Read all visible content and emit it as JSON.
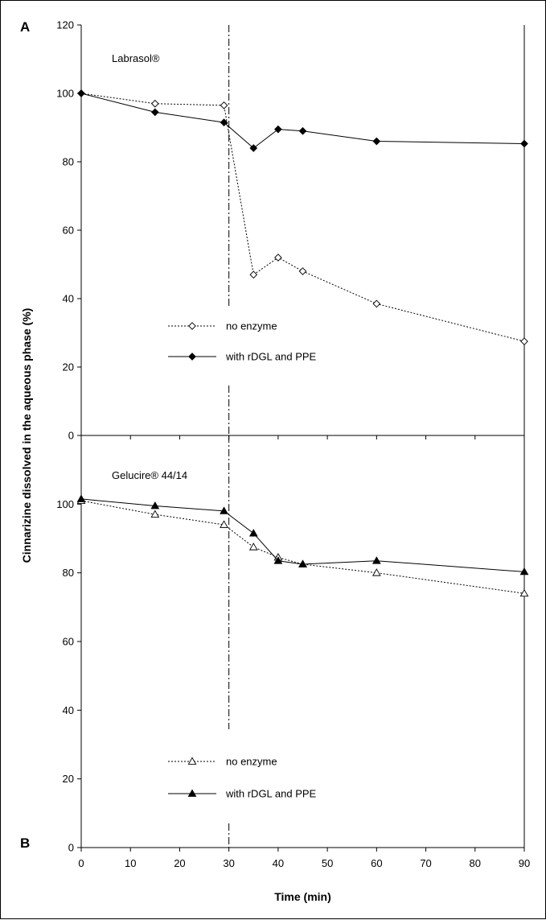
{
  "figure": {
    "ylabel": "Cinnarizine dissolved in the aqueous phase (%)",
    "xlabel": "Time (min)",
    "x_ticks": [
      0,
      10,
      20,
      30,
      40,
      50,
      60,
      70,
      80,
      90
    ],
    "y_ticks": [
      0,
      20,
      40,
      60,
      80,
      100,
      120
    ],
    "xlim": [
      0,
      90
    ],
    "vertical_marker_x": 30
  },
  "chart_data": [
    {
      "type": "line",
      "panel": "A",
      "title": "Labrasol®",
      "xlabel": "Time (min)",
      "ylabel": "Cinnarizine dissolved in the aqueous phase (%)",
      "xlim": [
        0,
        90
      ],
      "ylim": [
        0,
        120
      ],
      "legend_position": "middle-left",
      "series": [
        {
          "name": "no enzyme",
          "marker": "diamond-open",
          "line": "dotted",
          "x": [
            0,
            15,
            29,
            35,
            40,
            45,
            60,
            90
          ],
          "y": [
            100,
            97,
            96.5,
            47,
            52,
            48,
            38.5,
            27.5
          ]
        },
        {
          "name": "with rDGL and PPE",
          "marker": "diamond-filled",
          "line": "solid",
          "x": [
            0,
            15,
            29,
            35,
            40,
            45,
            60,
            90
          ],
          "y": [
            100,
            94.5,
            91.5,
            84,
            89.5,
            89,
            86,
            85.3
          ]
        }
      ]
    },
    {
      "type": "line",
      "panel": "B",
      "title": "Gelucire® 44/14",
      "xlabel": "Time (min)",
      "ylabel": "Cinnarizine dissolved in the aqueous phase (%)",
      "xlim": [
        0,
        90
      ],
      "ylim": [
        0,
        120
      ],
      "legend_position": "bottom-left",
      "series": [
        {
          "name": "no enzyme",
          "marker": "triangle-open",
          "line": "dotted",
          "x": [
            0,
            15,
            29,
            35,
            40,
            45,
            60,
            90
          ],
          "y": [
            101,
            97,
            94,
            87.5,
            84.5,
            82.5,
            80,
            74
          ]
        },
        {
          "name": "with rDGL and PPE",
          "marker": "triangle-filled",
          "line": "solid",
          "x": [
            0,
            15,
            29,
            35,
            40,
            45,
            60,
            90
          ],
          "y": [
            101.5,
            99.5,
            98,
            91.5,
            83.5,
            82.5,
            83.5,
            80.3
          ]
        }
      ]
    }
  ]
}
